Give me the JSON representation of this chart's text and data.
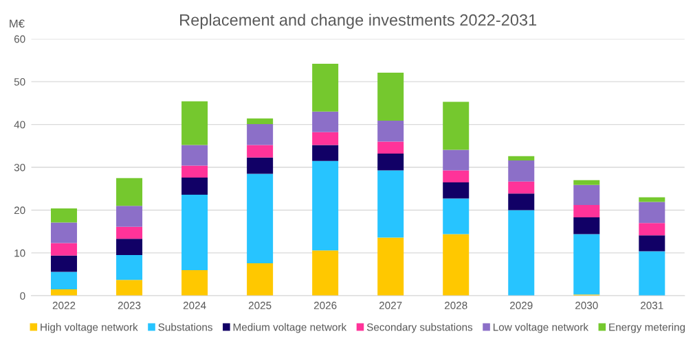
{
  "chart_data": {
    "type": "bar",
    "stacked": true,
    "title": "Replacement and change investments 2022-2031",
    "ylabel": "M€",
    "categories": [
      "2022",
      "2023",
      "2024",
      "2025",
      "2026",
      "2027",
      "2028",
      "2029",
      "2030",
      "2031"
    ],
    "series": [
      {
        "name": "High voltage network",
        "color": "#ffc800",
        "values": [
          1.5,
          3.7,
          6.0,
          7.6,
          10.6,
          13.6,
          14.4,
          0,
          0.3,
          0
        ]
      },
      {
        "name": "Substations",
        "color": "#27c4ff",
        "values": [
          4.1,
          5.8,
          17.6,
          20.9,
          20.9,
          15.7,
          8.3,
          20.0,
          14.1,
          10.4
        ]
      },
      {
        "name": "Medium voltage network",
        "color": "#110066",
        "values": [
          3.8,
          3.8,
          4.0,
          3.8,
          3.7,
          3.9,
          3.8,
          3.9,
          3.9,
          3.7
        ]
      },
      {
        "name": "Secondary substations",
        "color": "#ff3399",
        "values": [
          2.9,
          2.8,
          2.8,
          2.9,
          3.0,
          2.8,
          2.8,
          2.8,
          2.9,
          2.9
        ]
      },
      {
        "name": "Low voltage network",
        "color": "#8c6fc8",
        "values": [
          4.8,
          4.9,
          4.8,
          4.9,
          4.8,
          4.9,
          4.8,
          4.9,
          4.7,
          4.9
        ]
      },
      {
        "name": "Energy metering",
        "color": "#75c82e",
        "values": [
          3.3,
          6.5,
          10.2,
          1.3,
          11.2,
          11.2,
          11.2,
          1.0,
          1.1,
          1.1
        ]
      }
    ],
    "ylim": [
      0,
      60
    ],
    "yticks": [
      0,
      10,
      20,
      30,
      40,
      50,
      60
    ],
    "grid": "y",
    "legend": "bottom"
  }
}
